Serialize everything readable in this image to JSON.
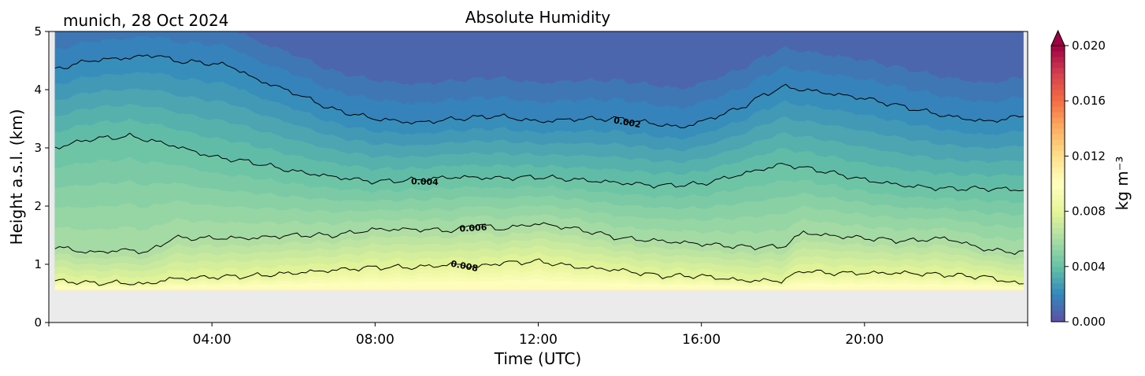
{
  "chart_data": {
    "type": "contour",
    "title": "Absolute Humidity",
    "location_label": "munich, 28 Oct 2024",
    "xlabel": "Time (UTC)",
    "ylabel": "Height a.s.l. (km)",
    "xlim": [
      0,
      24
    ],
    "ylim": [
      0,
      5
    ],
    "x_ticks": [
      4,
      8,
      12,
      16,
      20
    ],
    "x_tick_labels": [
      "04:00",
      "08:00",
      "12:00",
      "16:00",
      "20:00"
    ],
    "y_ticks": [
      0,
      1,
      2,
      3,
      4,
      5
    ],
    "y_tick_labels": [
      "0",
      "1",
      "2",
      "3",
      "4",
      "5"
    ],
    "data_start_hour": 0.15,
    "data_end_hour": 23.9,
    "ground_height_km": 0.55,
    "ground_color": "#ebebeb",
    "colormap": "Spectral_r",
    "colorbar": {
      "label": "kg m⁻³",
      "range": [
        0.0,
        0.02
      ],
      "ticks": [
        "0.000",
        "0.004",
        "0.008",
        "0.012",
        "0.016",
        "0.020"
      ],
      "extend": "max",
      "stops": [
        "#5e4fa2",
        "#3288bd",
        "#66c2a5",
        "#abdda4",
        "#e6f598",
        "#ffffbf",
        "#fee08b",
        "#fdae61",
        "#f46d43",
        "#d53e4f",
        "#9e0142"
      ]
    },
    "contour_levels": [
      {
        "level": 0.002,
        "label": "0.002",
        "label_at_hour": 14.2,
        "x": [
          0.15,
          1,
          2,
          2.7,
          3,
          4,
          4.5,
          5,
          6,
          7,
          8,
          9,
          10,
          11,
          12,
          13,
          14,
          15,
          15.5,
          16,
          17,
          17.5,
          18,
          18.5,
          19,
          20,
          21,
          22,
          23,
          23.9
        ],
        "y": [
          4.35,
          4.5,
          4.55,
          4.6,
          4.5,
          4.45,
          4.4,
          4.2,
          3.95,
          3.65,
          3.5,
          3.43,
          3.5,
          3.55,
          3.45,
          3.5,
          3.5,
          3.4,
          3.35,
          3.45,
          3.7,
          3.9,
          4.05,
          4.0,
          3.95,
          3.85,
          3.7,
          3.55,
          3.45,
          3.55
        ]
      },
      {
        "level": 0.004,
        "label": "0.004",
        "label_at_hour": 9.2,
        "x": [
          0.15,
          1,
          2,
          3,
          4,
          5,
          6,
          7,
          8,
          9,
          10,
          11,
          12,
          13,
          14,
          15,
          16,
          17,
          18,
          19,
          20,
          21,
          22,
          23,
          23.9
        ],
        "y": [
          3.0,
          3.15,
          3.2,
          3.05,
          2.85,
          2.75,
          2.6,
          2.5,
          2.42,
          2.45,
          2.5,
          2.48,
          2.5,
          2.45,
          2.4,
          2.35,
          2.38,
          2.55,
          2.72,
          2.6,
          2.45,
          2.35,
          2.3,
          2.3,
          2.28
        ]
      },
      {
        "level": 0.006,
        "label": "0.006",
        "label_at_hour": 10.4,
        "x": [
          0.15,
          1,
          2,
          2.4,
          2.8,
          3,
          4,
          5,
          6,
          7,
          8,
          9,
          10,
          10.5,
          11,
          12,
          13,
          14,
          15,
          16,
          17,
          18,
          18.5,
          19,
          20,
          21,
          22,
          23,
          23.9
        ],
        "y": [
          1.3,
          1.2,
          1.25,
          1.2,
          1.35,
          1.45,
          1.45,
          1.45,
          1.5,
          1.5,
          1.6,
          1.6,
          1.58,
          1.7,
          1.6,
          1.7,
          1.6,
          1.45,
          1.4,
          1.35,
          1.3,
          1.3,
          1.55,
          1.5,
          1.45,
          1.4,
          1.45,
          1.25,
          1.2
        ]
      },
      {
        "level": 0.008,
        "label": "0.008",
        "label_at_hour": 10.2,
        "x": [
          0.15,
          1,
          2,
          2.3,
          3,
          4,
          5,
          6,
          7,
          8,
          9,
          10,
          10.5,
          11,
          12,
          13,
          14,
          15,
          16,
          17,
          18,
          18.5,
          19,
          20,
          21,
          22,
          23,
          23.9
        ],
        "y": [
          0.72,
          0.68,
          0.68,
          0.65,
          0.75,
          0.78,
          0.8,
          0.85,
          0.9,
          0.95,
          0.95,
          1.0,
          0.95,
          1.02,
          1.05,
          0.95,
          0.9,
          0.8,
          0.8,
          0.72,
          0.72,
          0.9,
          0.85,
          0.85,
          0.85,
          0.82,
          0.78,
          0.65
        ]
      }
    ]
  }
}
